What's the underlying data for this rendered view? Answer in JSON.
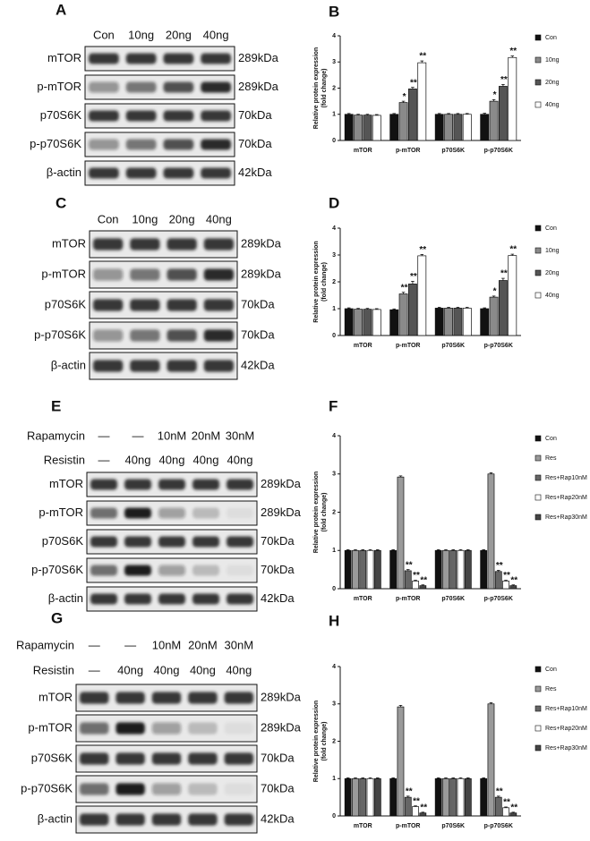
{
  "blots": [
    {
      "panel": "A",
      "header_rows": [
        {
          "lanes": [
            "Con",
            "10ng",
            "20ng",
            "40ng"
          ]
        }
      ],
      "rows": [
        {
          "label": "mTOR",
          "kda": "289kDa"
        },
        {
          "label": "p-mTOR",
          "kda": "289kDa"
        },
        {
          "label": "p70S6K",
          "kda": "70kDa"
        },
        {
          "label": "p-p70S6K",
          "kda": "70kDa"
        },
        {
          "label": "β-actin",
          "kda": "42kDa"
        }
      ]
    },
    {
      "panel": "C",
      "header_rows": [
        {
          "lanes": [
            "Con",
            "10ng",
            "20ng",
            "40ng"
          ]
        }
      ],
      "rows": [
        {
          "label": "mTOR",
          "kda": "289kDa"
        },
        {
          "label": "p-mTOR",
          "kda": "289kDa"
        },
        {
          "label": "p70S6K",
          "kda": "70kDa"
        },
        {
          "label": "p-p70S6K",
          "kda": "70kDa"
        },
        {
          "label": "β-actin",
          "kda": "42kDa"
        }
      ]
    },
    {
      "panel": "E",
      "header_rows": [
        {
          "label": "Rapamycin",
          "lanes": [
            "—",
            "—",
            "10nM",
            "20nM",
            "30nM"
          ]
        },
        {
          "label": "Resistin",
          "lanes": [
            "—",
            "40ng",
            "40ng",
            "40ng",
            "40ng"
          ]
        }
      ],
      "rows": [
        {
          "label": "mTOR",
          "kda": "289kDa"
        },
        {
          "label": "p-mTOR",
          "kda": "289kDa"
        },
        {
          "label": "p70S6K",
          "kda": "70kDa"
        },
        {
          "label": "p-p70S6K",
          "kda": "70kDa"
        },
        {
          "label": "β-actin",
          "kda": "42kDa"
        }
      ]
    },
    {
      "panel": "G",
      "header_rows": [
        {
          "label": "Rapamycin",
          "lanes": [
            "—",
            "—",
            "10nM",
            "20nM",
            "30nM"
          ]
        },
        {
          "label": "Resistin",
          "lanes": [
            "—",
            "40ng",
            "40ng",
            "40ng",
            "40ng"
          ]
        }
      ],
      "rows": [
        {
          "label": "mTOR",
          "kda": "289kDa"
        },
        {
          "label": "p-mTOR",
          "kda": "289kDa"
        },
        {
          "label": "p70S6K",
          "kda": "70kDa"
        },
        {
          "label": "p-p70S6K",
          "kda": "70kDa"
        },
        {
          "label": "β-actin",
          "kda": "42kDa"
        }
      ]
    }
  ],
  "chart_data": [
    {
      "panel": "B",
      "type": "bar",
      "ylabel": [
        "Relative protein expression",
        "(fold change)"
      ],
      "categories": [
        "mTOR",
        "p-mTOR",
        "p70S6K",
        "p-p70S6K"
      ],
      "ylim": [
        0,
        4
      ],
      "yticks": [
        0,
        1,
        2,
        3,
        4
      ],
      "series": [
        {
          "name": "Con",
          "color": "#111111",
          "values": [
            1,
            1,
            1,
            1
          ],
          "errors": [
            0.03,
            0.03,
            0.03,
            0.04
          ],
          "marks": [
            null,
            null,
            null,
            null
          ]
        },
        {
          "name": "10ng",
          "color": "#8a8a8a",
          "values": [
            0.97,
            1.45,
            1,
            1.5
          ],
          "errors": [
            0.03,
            0.05,
            0.03,
            0.06
          ],
          "marks": [
            null,
            "*",
            null,
            "*"
          ]
        },
        {
          "name": "20ng",
          "color": "#555555",
          "values": [
            0.97,
            1.97,
            1,
            2.07
          ],
          "errors": [
            0.03,
            0.06,
            0.03,
            0.07
          ],
          "marks": [
            null,
            "**",
            null,
            "**"
          ]
        },
        {
          "name": "40ng",
          "color": "#ffffff",
          "values": [
            0.96,
            2.97,
            1,
            3.17
          ],
          "errors": [
            0.03,
            0.07,
            0.03,
            0.06
          ],
          "marks": [
            null,
            "**",
            null,
            "**"
          ]
        }
      ]
    },
    {
      "panel": "D",
      "type": "bar",
      "ylabel": [
        "Relative protein expression",
        "(fold change)"
      ],
      "categories": [
        "mTOR",
        "p-mTOR",
        "p70S6K",
        "p-p70S6K"
      ],
      "ylim": [
        0,
        4
      ],
      "yticks": [
        0,
        1,
        2,
        3,
        4
      ],
      "series": [
        {
          "name": "Con",
          "color": "#111111",
          "values": [
            1,
            0.96,
            1.02,
            1
          ],
          "errors": [
            0.03,
            0.03,
            0.03,
            0.03
          ],
          "marks": [
            null,
            null,
            null,
            null
          ]
        },
        {
          "name": "10ng",
          "color": "#8a8a8a",
          "values": [
            0.98,
            1.55,
            1.02,
            1.43
          ],
          "errors": [
            0.03,
            0.06,
            0.03,
            0.04
          ],
          "marks": [
            null,
            "**",
            null,
            "*"
          ]
        },
        {
          "name": "20ng",
          "color": "#555555",
          "values": [
            0.98,
            1.92,
            1.02,
            2.05
          ],
          "errors": [
            0.03,
            0.1,
            0.03,
            0.08
          ],
          "marks": [
            null,
            "**",
            null,
            "**"
          ]
        },
        {
          "name": "40ng",
          "color": "#ffffff",
          "values": [
            0.97,
            2.97,
            1.02,
            2.98
          ],
          "errors": [
            0.03,
            0.05,
            0.03,
            0.05
          ],
          "marks": [
            null,
            "**",
            null,
            "**"
          ]
        }
      ]
    },
    {
      "panel": "F",
      "type": "bar",
      "ylabel": [
        "Relative protein expression",
        "(fold change)"
      ],
      "categories": [
        "mTOR",
        "p-mTOR",
        "p70S6K",
        "p-p70S6K"
      ],
      "ylim": [
        0,
        4
      ],
      "yticks": [
        0,
        1,
        2,
        3,
        4
      ],
      "series": [
        {
          "name": "Con",
          "color": "#111111",
          "values": [
            1,
            1,
            1,
            1
          ],
          "errors": [
            0.02,
            0.02,
            0.02,
            0.02
          ],
          "marks": [
            null,
            null,
            null,
            null
          ]
        },
        {
          "name": "Res",
          "color": "#9a9a9a",
          "values": [
            1,
            2.92,
            1,
            3
          ],
          "errors": [
            0.02,
            0.03,
            0.02,
            0.03
          ],
          "marks": [
            null,
            null,
            null,
            null
          ]
        },
        {
          "name": "Res+Rap10nM",
          "color": "#666666",
          "values": [
            1,
            0.47,
            1,
            0.45
          ],
          "errors": [
            0.02,
            0.03,
            0.02,
            0.03
          ],
          "marks": [
            null,
            "**",
            null,
            "**"
          ]
        },
        {
          "name": "Res+Rap20nM",
          "color": "#ffffff",
          "values": [
            1,
            0.2,
            1,
            0.2
          ],
          "errors": [
            0.02,
            0.02,
            0.02,
            0.02
          ],
          "marks": [
            null,
            "**",
            null,
            "**"
          ]
        },
        {
          "name": "Res+Rap30nM",
          "color": "#444444",
          "values": [
            1,
            0.08,
            1,
            0.08
          ],
          "errors": [
            0.02,
            0.02,
            0.02,
            0.02
          ],
          "marks": [
            null,
            "**",
            null,
            "**"
          ]
        }
      ]
    },
    {
      "panel": "H",
      "type": "bar",
      "ylabel": [
        "Relative protein expression",
        "(fold change)"
      ],
      "categories": [
        "mTOR",
        "p-mTOR",
        "p70S6K",
        "p-p70S6K"
      ],
      "ylim": [
        0,
        4
      ],
      "yticks": [
        0,
        1,
        2,
        3,
        4
      ],
      "series": [
        {
          "name": "Con",
          "color": "#111111",
          "values": [
            1,
            1,
            1,
            1
          ],
          "errors": [
            0.02,
            0.02,
            0.02,
            0.02
          ],
          "marks": [
            null,
            null,
            null,
            null
          ]
        },
        {
          "name": "Res",
          "color": "#9a9a9a",
          "values": [
            1,
            2.92,
            1,
            3
          ],
          "errors": [
            0.02,
            0.04,
            0.02,
            0.03
          ],
          "marks": [
            null,
            null,
            null,
            null
          ]
        },
        {
          "name": "Res+Rap10nM",
          "color": "#666666",
          "values": [
            1,
            0.5,
            1,
            0.5
          ],
          "errors": [
            0.02,
            0.03,
            0.02,
            0.03
          ],
          "marks": [
            null,
            "**",
            null,
            "**"
          ]
        },
        {
          "name": "Res+Rap20nM",
          "color": "#ffffff",
          "values": [
            1,
            0.25,
            1,
            0.22
          ],
          "errors": [
            0.02,
            0.02,
            0.02,
            0.02
          ],
          "marks": [
            null,
            "**",
            null,
            "**"
          ]
        },
        {
          "name": "Res+Rap30nM",
          "color": "#444444",
          "values": [
            1,
            0.08,
            1,
            0.08
          ],
          "errors": [
            0.02,
            0.02,
            0.02,
            0.02
          ],
          "marks": [
            null,
            "**",
            null,
            "**"
          ]
        }
      ]
    }
  ]
}
